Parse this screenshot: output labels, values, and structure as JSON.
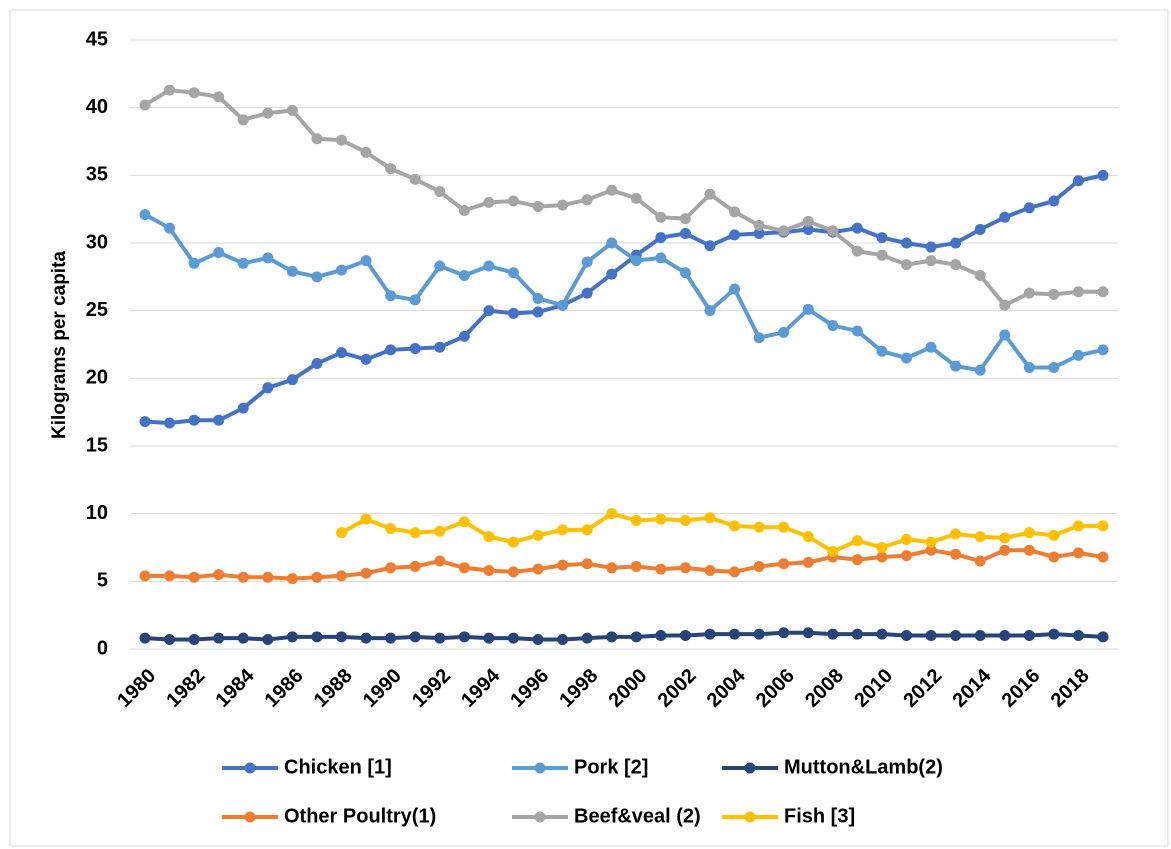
{
  "chart_data": {
    "type": "line",
    "y_label": "Kilograms per capita",
    "x": [
      1980,
      1981,
      1982,
      1983,
      1984,
      1985,
      1986,
      1987,
      1988,
      1989,
      1990,
      1991,
      1992,
      1993,
      1994,
      1995,
      1996,
      1997,
      1998,
      1999,
      2000,
      2001,
      2002,
      2003,
      2004,
      2005,
      2006,
      2007,
      2008,
      2009,
      2010,
      2011,
      2012,
      2013,
      2014,
      2015,
      2016,
      2017,
      2018,
      2019
    ],
    "xlim": [
      1980,
      2019
    ],
    "xticks": [
      1980,
      1982,
      1984,
      1986,
      1988,
      1990,
      1992,
      1994,
      1996,
      1998,
      2000,
      2002,
      2004,
      2006,
      2008,
      2010,
      2012,
      2014,
      2016,
      2018
    ],
    "ylim": [
      0,
      45
    ],
    "yticks": [
      0,
      5,
      10,
      15,
      20,
      25,
      30,
      35,
      40,
      45
    ],
    "grid": true,
    "legend": "bottom",
    "series": [
      {
        "name": "Chicken [1]",
        "color": "#4472c4",
        "values": [
          16.8,
          16.7,
          16.9,
          16.9,
          17.8,
          19.3,
          19.9,
          21.1,
          21.9,
          21.4,
          22.1,
          22.2,
          22.3,
          23.1,
          25.0,
          24.8,
          24.9,
          25.4,
          26.3,
          27.7,
          29.1,
          30.4,
          30.7,
          29.8,
          30.6,
          30.7,
          30.8,
          31.0,
          30.8,
          31.1,
          30.4,
          30.0,
          29.7,
          30.0,
          31.0,
          31.9,
          32.6,
          33.1,
          34.6,
          35.0
        ]
      },
      {
        "name": "Pork [2]",
        "color": "#5b9bd5",
        "values": [
          32.1,
          31.1,
          28.5,
          29.3,
          28.5,
          28.9,
          27.9,
          27.5,
          28.0,
          28.7,
          26.1,
          25.8,
          28.3,
          27.6,
          28.3,
          27.8,
          25.9,
          25.4,
          28.6,
          30.0,
          28.7,
          28.9,
          27.8,
          25.0,
          26.6,
          23.0,
          23.4,
          25.1,
          23.9,
          23.5,
          22.0,
          21.5,
          22.3,
          20.9,
          20.6,
          23.2,
          20.8,
          20.8,
          21.7,
          22.1
        ]
      },
      {
        "name": "Mutton&Lamb(2)",
        "color": "#264478",
        "values": [
          0.8,
          0.7,
          0.7,
          0.8,
          0.8,
          0.7,
          0.9,
          0.9,
          0.9,
          0.8,
          0.8,
          0.9,
          0.8,
          0.9,
          0.8,
          0.8,
          0.7,
          0.7,
          0.8,
          0.9,
          0.9,
          1.0,
          1.0,
          1.1,
          1.1,
          1.1,
          1.2,
          1.2,
          1.1,
          1.1,
          1.1,
          1.0,
          1.0,
          1.0,
          1.0,
          1.0,
          1.0,
          1.1,
          1.0,
          0.9
        ]
      },
      {
        "name": "Other Poultry(1)",
        "color": "#ed7d31",
        "values": [
          5.4,
          5.4,
          5.3,
          5.5,
          5.3,
          5.3,
          5.2,
          5.3,
          5.4,
          5.6,
          6.0,
          6.1,
          6.5,
          6.0,
          5.8,
          5.7,
          5.9,
          6.2,
          6.3,
          6.0,
          6.1,
          5.9,
          6.0,
          5.8,
          5.7,
          6.1,
          6.3,
          6.4,
          6.8,
          6.6,
          6.8,
          6.9,
          7.3,
          7.0,
          6.5,
          7.3,
          7.3,
          6.8,
          7.1,
          6.8
        ]
      },
      {
        "name": "Beef&veal (2)",
        "color": "#a5a5a5",
        "values": [
          40.2,
          41.3,
          41.1,
          40.8,
          39.1,
          39.6,
          39.8,
          37.7,
          37.6,
          36.7,
          35.5,
          34.7,
          33.8,
          32.4,
          33.0,
          33.1,
          32.7,
          32.8,
          33.2,
          33.9,
          33.3,
          31.9,
          31.8,
          33.6,
          32.3,
          31.3,
          30.9,
          31.6,
          30.9,
          29.4,
          29.1,
          28.4,
          28.7,
          28.4,
          27.6,
          25.4,
          26.3,
          26.2,
          26.4,
          26.4
        ]
      },
      {
        "name": "Fish [3]",
        "color": "#ffc000",
        "values": [
          null,
          null,
          null,
          null,
          null,
          null,
          null,
          null,
          8.6,
          9.6,
          8.9,
          8.6,
          8.7,
          9.4,
          8.3,
          7.9,
          8.4,
          8.8,
          8.8,
          10.0,
          9.5,
          9.6,
          9.5,
          9.7,
          9.1,
          9.0,
          9.0,
          8.3,
          7.2,
          8.0,
          7.5,
          8.1,
          7.9,
          8.5,
          8.3,
          8.2,
          8.6,
          8.4,
          9.1,
          9.1
        ]
      }
    ]
  }
}
